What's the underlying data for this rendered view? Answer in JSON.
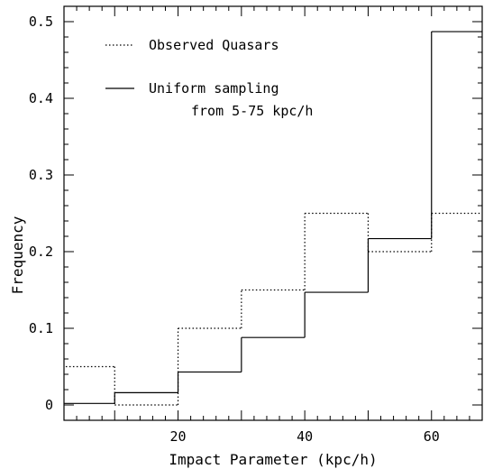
{
  "chart_data": {
    "type": "histogram",
    "title": "",
    "xlabel": "Impact Parameter (kpc/h)",
    "ylabel": "Frequency",
    "xlim": [
      2,
      68
    ],
    "ylim": [
      -0.02,
      0.52
    ],
    "x_ticks": [
      {
        "value": 20,
        "label": "20"
      },
      {
        "value": 40,
        "label": "40"
      },
      {
        "value": 60,
        "label": "60"
      }
    ],
    "y_ticks": [
      {
        "value": 0,
        "label": "0"
      },
      {
        "value": 0.1,
        "label": "0.1"
      },
      {
        "value": 0.2,
        "label": "0.2"
      },
      {
        "value": 0.3,
        "label": "0.3"
      },
      {
        "value": 0.4,
        "label": "0.4"
      },
      {
        "value": 0.5,
        "label": "0.5"
      }
    ],
    "bin_edges": [
      0,
      10,
      20,
      30,
      40,
      50,
      60,
      70
    ],
    "grid": false,
    "legend_position": "top-left",
    "series": [
      {
        "name": "Observed Quasars",
        "style": "dotted",
        "values": [
          0.05,
          0.0,
          0.1,
          0.15,
          0.25,
          0.2,
          0.25
        ]
      },
      {
        "name": "Uniform sampling",
        "name_line2": "from 5-75 kpc/h",
        "style": "solid",
        "values": [
          0.002,
          0.016,
          0.043,
          0.088,
          0.147,
          0.217,
          0.487
        ]
      }
    ]
  }
}
